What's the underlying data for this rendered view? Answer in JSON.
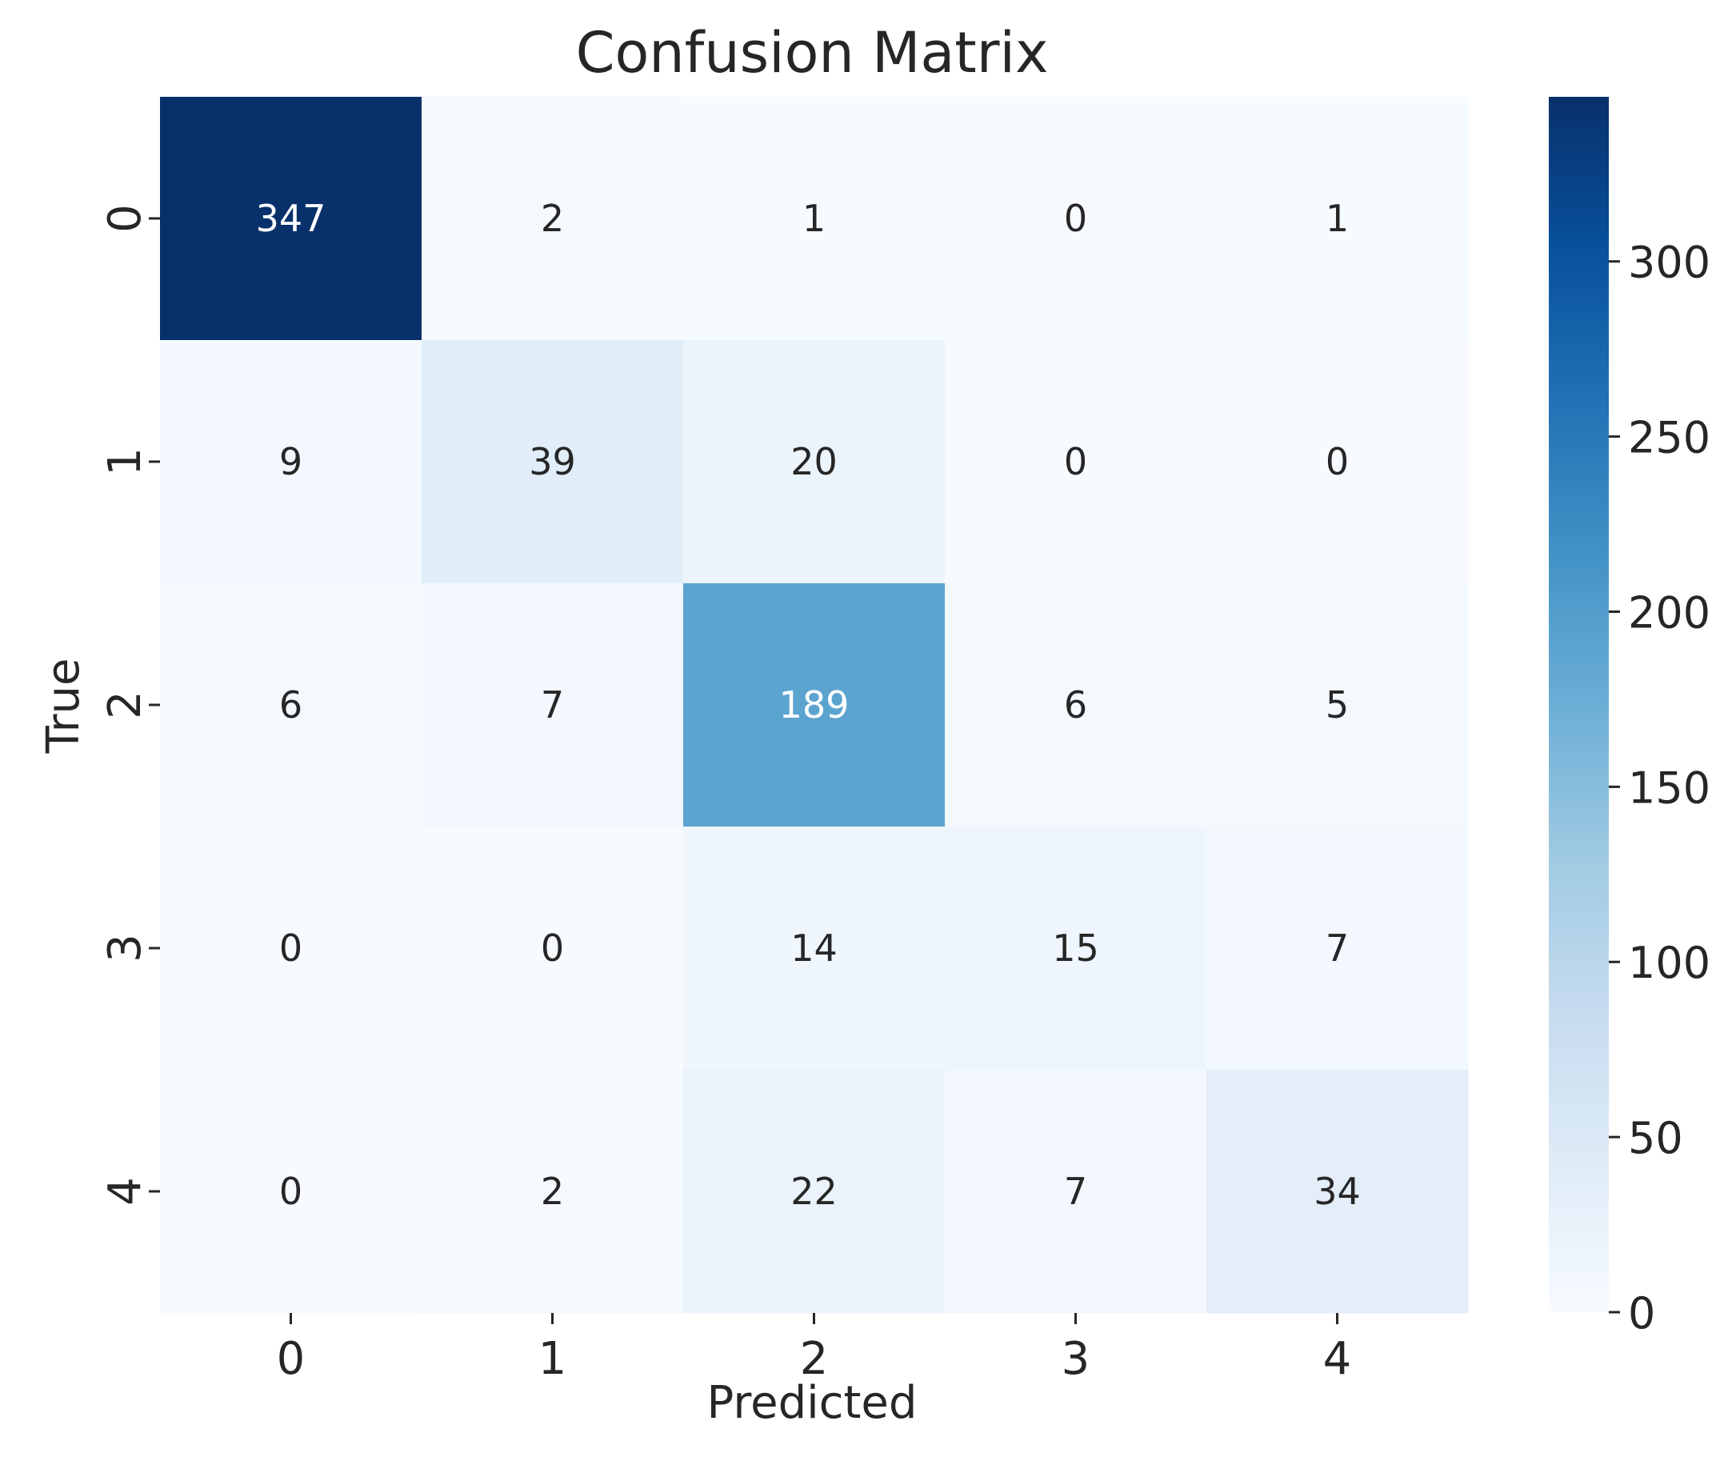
{
  "chart_data": {
    "type": "heatmap",
    "title": "Confusion Matrix",
    "xlabel": "Predicted",
    "ylabel": "True",
    "x_categories": [
      "0",
      "1",
      "2",
      "3",
      "4"
    ],
    "y_categories": [
      "0",
      "1",
      "2",
      "3",
      "4"
    ],
    "matrix": [
      [
        347,
        2,
        1,
        0,
        1
      ],
      [
        9,
        39,
        20,
        0,
        0
      ],
      [
        6,
        7,
        189,
        6,
        5
      ],
      [
        0,
        0,
        14,
        15,
        7
      ],
      [
        0,
        2,
        22,
        7,
        34
      ]
    ],
    "colormap": "Blues",
    "color_range": [
      0,
      347
    ],
    "colorbar_ticks": [
      0,
      50,
      100,
      150,
      200,
      250,
      300
    ],
    "annotations": true,
    "grid": false,
    "colors": {
      "low": "#f7fbff",
      "high": "#08306b",
      "text_dark": "#262626",
      "text_light": "#ffffff"
    }
  }
}
